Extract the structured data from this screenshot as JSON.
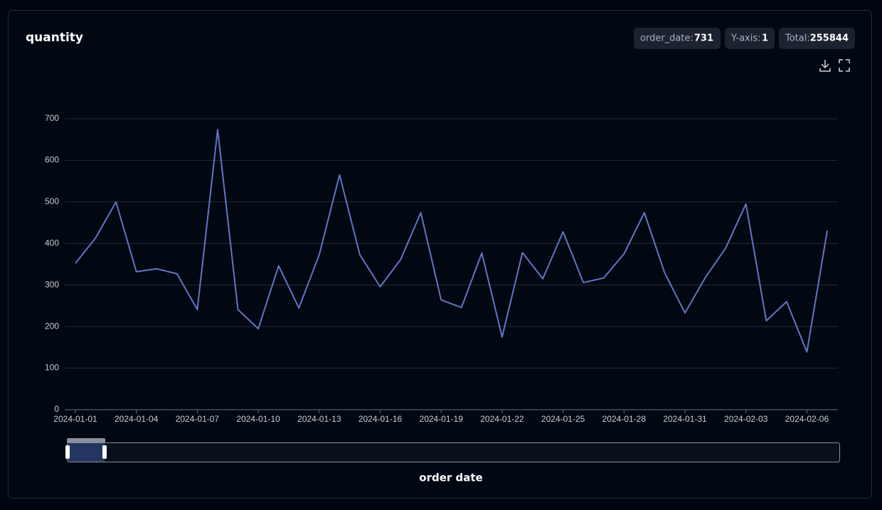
{
  "badges": [
    {
      "label": "order_date:",
      "value": "731"
    },
    {
      "label": "Y-axis:",
      "value": "1"
    },
    {
      "label": "Total:",
      "value": "255844"
    }
  ],
  "chart_data": {
    "type": "line",
    "title": "quantity",
    "x_label": "order date",
    "x": [
      "2024-01-01",
      "2024-01-02",
      "2024-01-03",
      "2024-01-04",
      "2024-01-05",
      "2024-01-06",
      "2024-01-07",
      "2024-01-08",
      "2024-01-09",
      "2024-01-10",
      "2024-01-11",
      "2024-01-12",
      "2024-01-13",
      "2024-01-14",
      "2024-01-15",
      "2024-01-16",
      "2024-01-17",
      "2024-01-18",
      "2024-01-19",
      "2024-01-20",
      "2024-01-21",
      "2024-01-22",
      "2024-01-23",
      "2024-01-24",
      "2024-01-25",
      "2024-01-26",
      "2024-01-27",
      "2024-01-28",
      "2024-01-29",
      "2024-01-30",
      "2024-01-31",
      "2024-02-01",
      "2024-02-02",
      "2024-02-03",
      "2024-02-04",
      "2024-02-05",
      "2024-02-06",
      "2024-02-07"
    ],
    "series": [
      {
        "name": "quantity",
        "color": "#6274c4",
        "values": [
          352,
          414,
          500,
          332,
          339,
          327,
          241,
          674,
          241,
          195,
          346,
          245,
          373,
          565,
          373,
          296,
          361,
          474,
          264,
          246,
          377,
          175,
          378,
          315,
          428,
          306,
          317,
          375,
          474,
          329,
          233,
          318,
          389,
          495,
          214,
          260,
          139,
          431
        ]
      }
    ],
    "xticks": [
      "2024-01-01",
      "2024-01-04",
      "2024-01-07",
      "2024-01-10",
      "2024-01-13",
      "2024-01-16",
      "2024-01-19",
      "2024-01-22",
      "2024-01-25",
      "2024-01-28",
      "2024-01-31",
      "2024-02-03",
      "2024-02-06"
    ],
    "ylim": [
      0,
      700
    ],
    "yticks": [
      0,
      100,
      200,
      300,
      400,
      500,
      600,
      700
    ],
    "grid": true
  }
}
